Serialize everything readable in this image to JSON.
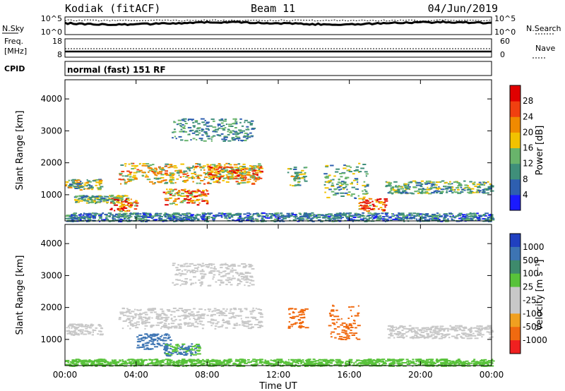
{
  "header": {
    "station": "Kodiak (fitACF)",
    "beam": "Beam 11",
    "date": "04/Jun/2019"
  },
  "noise_panel": {
    "left_label": "N.Sky",
    "right_label": "N.Search",
    "ticks_left": [
      "10^5",
      "10^0"
    ],
    "ticks_right": [
      "10^5",
      "10^0"
    ]
  },
  "freq_panel": {
    "left_label_1": "Freq.",
    "left_label_2": "[MHz]",
    "right_label": "Nave",
    "ticks_left": [
      "18",
      "8"
    ],
    "ticks_right": [
      "60",
      "0"
    ]
  },
  "cpid": {
    "label": "CPID",
    "value": "normal (fast) 151 RF"
  },
  "colors": {
    "power_scale": [
      "#1a1aff",
      "#2e5fb0",
      "#3f8f7a",
      "#69b46b",
      "#f2c200",
      "#f08a00",
      "#f04010",
      "#e00000"
    ],
    "velocity_scale": [
      "#2040c0",
      "#3d74b3",
      "#3e8a6c",
      "#58c23a",
      "#c8c8c8",
      "#c8c8c8",
      "#f0a020",
      "#f06a10",
      "#f02020"
    ]
  },
  "chart_data": [
    {
      "type": "heatmap",
      "panel": "power",
      "ylabel": "Slant Range [km]",
      "yticks": [
        1000,
        2000,
        3000,
        4000
      ],
      "ylim": [
        180,
        4600
      ],
      "xlim_hours": [
        0,
        24
      ],
      "colorbar_label": "Power [dB]",
      "colorbar_ticks": [
        "28",
        "24",
        "20",
        "16",
        "12",
        "8",
        "4"
      ],
      "colorbar_range": [
        0,
        30
      ],
      "features": [
        {
          "t0": 0.0,
          "t1": 2.0,
          "r0": 1150,
          "r1": 1500,
          "value": 14
        },
        {
          "t0": 0.5,
          "t1": 3.5,
          "r0": 750,
          "r1": 1000,
          "value": 12
        },
        {
          "t0": 2.5,
          "t1": 4.0,
          "r0": 500,
          "r1": 900,
          "value": 24
        },
        {
          "t0": 3.0,
          "t1": 11.0,
          "r0": 1350,
          "r1": 2000,
          "value": 18
        },
        {
          "t0": 5.5,
          "t1": 8.0,
          "r0": 700,
          "r1": 1200,
          "value": 22
        },
        {
          "t0": 6.0,
          "t1": 10.5,
          "r0": 2700,
          "r1": 3400,
          "value": 10
        },
        {
          "t0": 8.0,
          "t1": 11.0,
          "r0": 1500,
          "r1": 1900,
          "value": 22
        },
        {
          "t0": 12.5,
          "t1": 13.5,
          "r0": 1300,
          "r1": 1900,
          "value": 14
        },
        {
          "t0": 14.5,
          "t1": 17.0,
          "r0": 900,
          "r1": 2000,
          "value": 12
        },
        {
          "t0": 16.5,
          "t1": 18.0,
          "r0": 500,
          "r1": 900,
          "value": 24
        },
        {
          "t0": 18.0,
          "t1": 24.0,
          "r0": 1050,
          "r1": 1450,
          "value": 12
        },
        {
          "t0": 0.0,
          "t1": 24.0,
          "r0": 180,
          "r1": 450,
          "value": 8
        }
      ]
    },
    {
      "type": "heatmap",
      "panel": "velocity",
      "ylabel": "Slant Range [km]",
      "xlabel": "Time UT",
      "xticks": [
        "00:00",
        "04:00",
        "08:00",
        "12:00",
        "16:00",
        "20:00",
        "00:00"
      ],
      "yticks": [
        1000,
        2000,
        3000,
        4000
      ],
      "ylim": [
        180,
        4600
      ],
      "xlim_hours": [
        0,
        24
      ],
      "colorbar_label": "Velocity [m s⁻¹]",
      "colorbar_ticks": [
        "1000",
        "500",
        "100",
        "25",
        "-25",
        "-100",
        "-500",
        "-1000"
      ],
      "features": [
        {
          "t0": 0.0,
          "t1": 2.0,
          "r0": 1150,
          "r1": 1500,
          "value": 0
        },
        {
          "t0": 3.0,
          "t1": 11.0,
          "r0": 1350,
          "r1": 2000,
          "value": 0
        },
        {
          "t0": 4.0,
          "t1": 6.0,
          "r0": 700,
          "r1": 1200,
          "value": 250
        },
        {
          "t0": 5.5,
          "t1": 7.5,
          "r0": 500,
          "r1": 900,
          "value": 100
        },
        {
          "t0": 6.0,
          "t1": 10.5,
          "r0": 2700,
          "r1": 3400,
          "value": 0
        },
        {
          "t0": 12.5,
          "t1": 13.5,
          "r0": 1300,
          "r1": 2000,
          "value": -300
        },
        {
          "t0": 14.8,
          "t1": 16.5,
          "r0": 1000,
          "r1": 2100,
          "value": -300
        },
        {
          "t0": 18.0,
          "t1": 24.0,
          "r0": 1050,
          "r1": 1450,
          "value": 0
        },
        {
          "t0": 0.0,
          "t1": 24.0,
          "r0": 180,
          "r1": 400,
          "value": 60
        }
      ]
    }
  ]
}
